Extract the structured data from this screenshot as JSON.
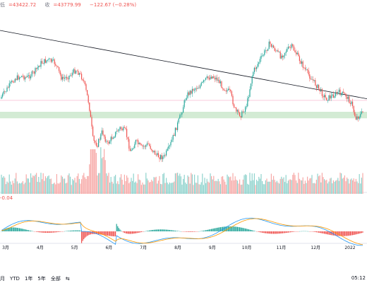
{
  "ohlc": {
    "low_label": "低",
    "low_value": "=43422.72",
    "close_label": "收",
    "close_value": "=43779.99",
    "change": "−122.67 (−0.28%)"
  },
  "macd_value": "-0.04",
  "timeframes": [
    "月",
    "YTD",
    "1年",
    "5年",
    "全部"
  ],
  "timeframe_icon": "compare-icon",
  "time_display": "05:12",
  "colors": {
    "up": "#26a69a",
    "down": "#ef5350",
    "trendline": "#131722",
    "support_zone": "#c8e6c9",
    "macd_line": "#2196f3",
    "signal_line": "#ff9800"
  },
  "chart_data": {
    "type": "candlestick",
    "x_tick_labels": [
      "3月",
      "4月",
      "5月",
      "6月",
      "7月",
      "8月",
      "9月",
      "10月",
      "11月",
      "12月",
      "2022"
    ],
    "price_anchors": [
      [
        0,
        0.52
      ],
      [
        10,
        0.46
      ],
      [
        20,
        0.4
      ],
      [
        30,
        0.38
      ],
      [
        38,
        0.39
      ],
      [
        48,
        0.36
      ],
      [
        58,
        0.3
      ],
      [
        68,
        0.28
      ],
      [
        78,
        0.3
      ],
      [
        88,
        0.4
      ],
      [
        98,
        0.38
      ],
      [
        108,
        0.34
      ],
      [
        118,
        0.4
      ],
      [
        126,
        0.55
      ],
      [
        132,
        0.78
      ],
      [
        138,
        0.8
      ],
      [
        145,
        0.72
      ],
      [
        152,
        0.8
      ],
      [
        160,
        0.75
      ],
      [
        170,
        0.7
      ],
      [
        178,
        0.72
      ],
      [
        185,
        0.85
      ],
      [
        192,
        0.78
      ],
      [
        200,
        0.82
      ],
      [
        210,
        0.8
      ],
      [
        222,
        0.87
      ],
      [
        232,
        0.88
      ],
      [
        240,
        0.82
      ],
      [
        248,
        0.72
      ],
      [
        256,
        0.62
      ],
      [
        264,
        0.5
      ],
      [
        274,
        0.46
      ],
      [
        284,
        0.44
      ],
      [
        292,
        0.4
      ],
      [
        300,
        0.38
      ],
      [
        308,
        0.4
      ],
      [
        316,
        0.45
      ],
      [
        326,
        0.48
      ],
      [
        334,
        0.6
      ],
      [
        342,
        0.62
      ],
      [
        350,
        0.55
      ],
      [
        358,
        0.36
      ],
      [
        366,
        0.3
      ],
      [
        374,
        0.24
      ],
      [
        382,
        0.18
      ],
      [
        390,
        0.22
      ],
      [
        398,
        0.26
      ],
      [
        406,
        0.22
      ],
      [
        414,
        0.2
      ],
      [
        422,
        0.26
      ],
      [
        432,
        0.34
      ],
      [
        442,
        0.4
      ],
      [
        452,
        0.46
      ],
      [
        462,
        0.52
      ],
      [
        472,
        0.5
      ],
      [
        480,
        0.48
      ],
      [
        490,
        0.5
      ],
      [
        498,
        0.55
      ],
      [
        504,
        0.64
      ],
      [
        510,
        0.62
      ],
      [
        515,
        0.6
      ]
    ],
    "trendline": [
      [
        0,
        0.1
      ],
      [
        520,
        0.52
      ]
    ],
    "support_zone": [
      0.6,
      0.64
    ],
    "resistance_line": 0.53
  }
}
